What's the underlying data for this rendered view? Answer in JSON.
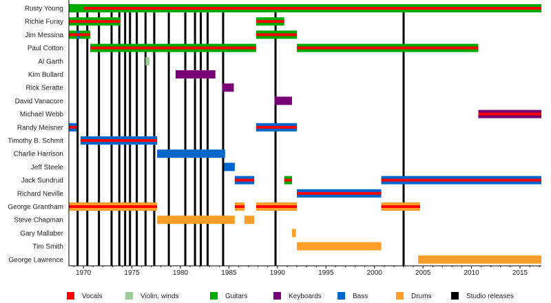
{
  "chart_data": {
    "type": "timeline",
    "title": "",
    "xlabel": "",
    "ylabel": "",
    "xlim": [
      1968.5,
      2017.2
    ],
    "x_ticks": [
      1970,
      1975,
      1980,
      1985,
      1990,
      1995,
      2000,
      2005,
      2010,
      2015
    ],
    "colors": {
      "vocals": "#ff0000",
      "violin": "#99cc99",
      "guitars": "#00aa00",
      "keyboards": "#770077",
      "bass": "#0066cc",
      "drums": "#ff9f2a",
      "studio": "#000000"
    },
    "legend": [
      {
        "key": "vocals",
        "label": "Vocals"
      },
      {
        "key": "violin",
        "label": "Violin, winds"
      },
      {
        "key": "guitars",
        "label": "Guitars"
      },
      {
        "key": "keyboards",
        "label": "Keyboards"
      },
      {
        "key": "bass",
        "label": "Bass"
      },
      {
        "key": "drums",
        "label": "Drums"
      },
      {
        "key": "studio",
        "label": "Studio releases"
      }
    ],
    "studio_releases": [
      1969.4,
      1970.4,
      1971.6,
      1972.9,
      1973.7,
      1974.3,
      1974.8,
      1975.5,
      1976.4,
      1977.3,
      1978.8,
      1980.5,
      1981.5,
      1982.1,
      1982.8,
      1984.4,
      1989.8,
      2003.0
    ],
    "members": [
      {
        "name": "Rusty Young",
        "spans": [
          {
            "start": 1968.5,
            "end": 2017.2,
            "role": "guitars"
          },
          {
            "start": 1970.0,
            "end": 2017.2,
            "role": "vocals",
            "overlay": true
          }
        ]
      },
      {
        "name": "Richie Furay",
        "spans": [
          {
            "start": 1968.5,
            "end": 1973.8,
            "role": "guitars",
            "vocals": true
          },
          {
            "start": 1987.8,
            "end": 1990.7,
            "role": "guitars",
            "vocals": true
          }
        ]
      },
      {
        "name": "Jim Messina",
        "spans": [
          {
            "start": 1968.5,
            "end": 1970.7,
            "role": "guitars",
            "vocals": true
          },
          {
            "start": 1969.3,
            "end": 1969.6,
            "role": "bass",
            "accent": true
          },
          {
            "start": 1987.8,
            "end": 1992.0,
            "role": "guitars",
            "vocals": true
          }
        ]
      },
      {
        "name": "Paul Cotton",
        "spans": [
          {
            "start": 1970.7,
            "end": 1987.8,
            "role": "guitars",
            "vocals": true
          },
          {
            "start": 1992.0,
            "end": 2010.7,
            "role": "guitars",
            "vocals": true
          }
        ]
      },
      {
        "name": "Al Garth",
        "spans": [
          {
            "start": 1976.4,
            "end": 1976.8,
            "role": "violin"
          }
        ]
      },
      {
        "name": "Kim Bullard",
        "spans": [
          {
            "start": 1979.5,
            "end": 1983.6,
            "role": "keyboards"
          }
        ]
      },
      {
        "name": "Rick Seratte",
        "spans": [
          {
            "start": 1984.3,
            "end": 1985.5,
            "role": "keyboards"
          }
        ]
      },
      {
        "name": "David Vanacore",
        "spans": [
          {
            "start": 1989.7,
            "end": 1991.5,
            "role": "keyboards"
          }
        ]
      },
      {
        "name": "Michael Webb",
        "spans": [
          {
            "start": 2010.7,
            "end": 2017.2,
            "role": "keyboards",
            "vocals": true
          }
        ]
      },
      {
        "name": "Randy Meisner",
        "spans": [
          {
            "start": 1968.5,
            "end": 1969.3,
            "role": "bass",
            "vocals": true
          },
          {
            "start": 1987.8,
            "end": 1992.0,
            "role": "bass",
            "vocals": true
          }
        ]
      },
      {
        "name": "Timothy B. Schmit",
        "spans": [
          {
            "start": 1969.7,
            "end": 1977.6,
            "role": "bass",
            "vocals": true
          }
        ]
      },
      {
        "name": "Charlie Harrison",
        "spans": [
          {
            "start": 1977.6,
            "end": 1984.6,
            "role": "bass"
          }
        ]
      },
      {
        "name": "Jeff Steele",
        "spans": [
          {
            "start": 1984.5,
            "end": 1985.6,
            "role": "bass"
          }
        ]
      },
      {
        "name": "Jack Sundrud",
        "spans": [
          {
            "start": 1985.6,
            "end": 1987.6,
            "role": "bass",
            "vocals": true
          },
          {
            "start": 1990.7,
            "end": 1991.5,
            "role": "guitars",
            "vocals": true
          },
          {
            "start": 2000.7,
            "end": 2017.2,
            "role": "bass",
            "vocals": true
          }
        ]
      },
      {
        "name": "Richard Neville",
        "spans": [
          {
            "start": 1992.0,
            "end": 2000.7,
            "role": "bass",
            "vocals": true
          }
        ]
      },
      {
        "name": "George Grantham",
        "spans": [
          {
            "start": 1968.5,
            "end": 1977.6,
            "role": "drums",
            "vocals": true
          },
          {
            "start": 1985.6,
            "end": 1986.6,
            "role": "drums",
            "vocals": true
          },
          {
            "start": 1987.8,
            "end": 1992.0,
            "role": "drums",
            "vocals": true
          },
          {
            "start": 2000.7,
            "end": 2004.7,
            "role": "drums",
            "vocals": true
          }
        ]
      },
      {
        "name": "Steve Chapman",
        "spans": [
          {
            "start": 1977.6,
            "end": 1985.6,
            "role": "drums"
          },
          {
            "start": 1986.6,
            "end": 1987.6,
            "role": "drums"
          }
        ]
      },
      {
        "name": "Gary Mallaber",
        "spans": [
          {
            "start": 1991.5,
            "end": 1991.9,
            "role": "drums"
          }
        ]
      },
      {
        "name": "Tim Smith",
        "spans": [
          {
            "start": 1992.0,
            "end": 2000.7,
            "role": "drums"
          }
        ]
      },
      {
        "name": "George Lawrence",
        "spans": [
          {
            "start": 2004.5,
            "end": 2017.2,
            "role": "drums"
          }
        ]
      }
    ]
  }
}
